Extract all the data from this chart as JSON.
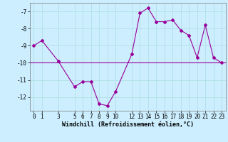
{
  "x": [
    0,
    1,
    3,
    5,
    6,
    7,
    8,
    9,
    10,
    12,
    13,
    14,
    15,
    16,
    17,
    18,
    19,
    20,
    21,
    22,
    23
  ],
  "y": [
    -9.0,
    -8.7,
    -9.9,
    -11.4,
    -11.1,
    -11.1,
    -12.4,
    -12.5,
    -11.7,
    -9.5,
    -7.1,
    -6.8,
    -7.6,
    -7.6,
    -7.5,
    -8.1,
    -8.4,
    -9.7,
    -7.8,
    -9.7,
    -10.0
  ],
  "hline_y": -10.0,
  "line_color": "#990099",
  "hline_color": "#990099",
  "bg_color": "#cceeff",
  "grid_color": "#aadddd",
  "xlabel": "Windchill (Refroidissement éolien,°C)",
  "xlabel_fontsize": 6.0,
  "tick_fontsize": 5.5,
  "ylim": [
    -12.8,
    -6.5
  ],
  "xlim": [
    -0.5,
    23.5
  ],
  "yticks": [
    -7,
    -8,
    -9,
    -10,
    -11,
    -12
  ],
  "xticks": [
    0,
    1,
    3,
    5,
    6,
    7,
    8,
    9,
    10,
    12,
    13,
    14,
    15,
    16,
    17,
    18,
    19,
    20,
    21,
    22,
    23
  ],
  "marker": "D",
  "marker_size": 2.0,
  "line_width": 0.8
}
